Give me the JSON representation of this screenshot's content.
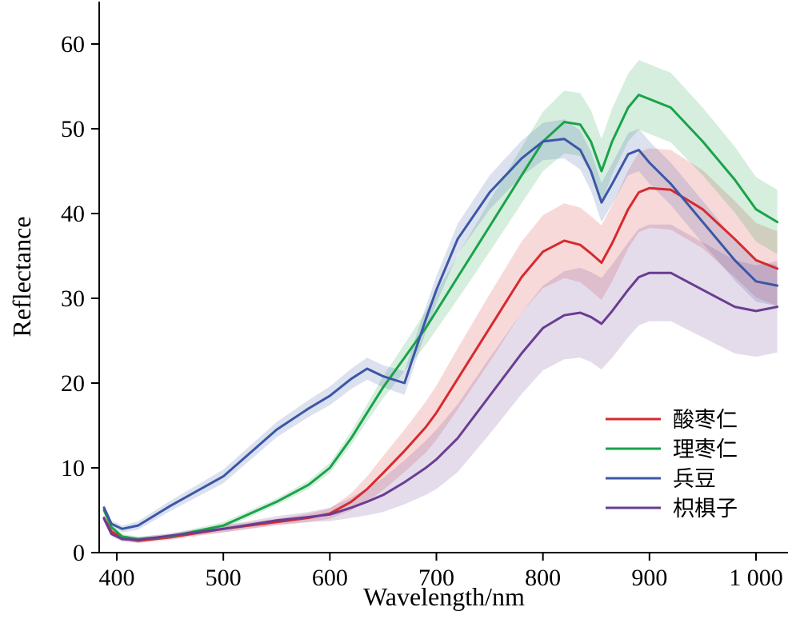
{
  "chart_data": {
    "type": "line",
    "xlabel": "Wavelength/nm",
    "ylabel": "Reflectance",
    "xlim": [
      385,
      1020
    ],
    "ylim": [
      0,
      65
    ],
    "x_ticks": [
      400,
      500,
      600,
      700,
      800,
      900,
      1000
    ],
    "x_tick_labels": [
      "400",
      "500",
      "600",
      "700",
      "800",
      "900",
      "1 000"
    ],
    "y_ticks": [
      0,
      10,
      20,
      30,
      40,
      50,
      60
    ],
    "y_tick_labels": [
      "0",
      "10",
      "20",
      "30",
      "40",
      "50",
      "60"
    ],
    "grid": false,
    "legend_position": "bottom-right",
    "x": [
      388,
      395,
      405,
      420,
      450,
      500,
      550,
      580,
      600,
      620,
      635,
      650,
      670,
      690,
      700,
      720,
      750,
      780,
      800,
      820,
      835,
      845,
      855,
      865,
      880,
      890,
      900,
      920,
      950,
      980,
      1000,
      1020
    ],
    "series": [
      {
        "name": "酸枣仁",
        "color": "#d62a2f",
        "values": [
          4.1,
          2.5,
          1.7,
          1.4,
          1.8,
          2.8,
          3.6,
          4.1,
          4.6,
          6.0,
          7.5,
          9.4,
          12.0,
          14.8,
          16.5,
          20.5,
          26.5,
          32.5,
          35.5,
          36.8,
          36.3,
          35.3,
          34.2,
          36.5,
          40.5,
          42.5,
          43.0,
          42.8,
          40.5,
          37.0,
          34.5,
          33.5
        ],
        "band": [
          0.3,
          0.3,
          0.3,
          0.3,
          0.3,
          0.4,
          0.4,
          0.5,
          0.6,
          1.0,
          1.5,
          2.0,
          2.5,
          3.0,
          3.2,
          3.6,
          4.0,
          4.2,
          4.3,
          4.4,
          4.4,
          4.4,
          4.4,
          4.5,
          4.6,
          4.7,
          4.7,
          4.7,
          4.6,
          4.5,
          4.4,
          4.4
        ]
      },
      {
        "name": "理枣仁",
        "color": "#1aa34a",
        "values": [
          5.0,
          3.0,
          1.9,
          1.6,
          1.9,
          3.2,
          6.0,
          8.0,
          10.0,
          13.5,
          16.5,
          19.5,
          23.0,
          26.5,
          28.5,
          32.5,
          38.5,
          44.5,
          48.5,
          50.8,
          50.5,
          48.5,
          45.0,
          48.5,
          52.5,
          54.0,
          53.5,
          52.5,
          48.5,
          44.0,
          40.5,
          39.0
        ],
        "band": [
          0.3,
          0.3,
          0.3,
          0.3,
          0.3,
          0.4,
          0.4,
          0.5,
          0.6,
          0.8,
          1.0,
          1.3,
          1.6,
          2.0,
          2.2,
          2.6,
          3.0,
          3.3,
          3.5,
          3.7,
          3.7,
          3.7,
          3.8,
          3.9,
          4.0,
          4.1,
          4.1,
          4.1,
          4.0,
          3.9,
          3.8,
          3.8
        ]
      },
      {
        "name": "兵豆",
        "color": "#3b57a6",
        "values": [
          5.3,
          3.4,
          2.8,
          3.2,
          5.5,
          9.0,
          14.5,
          17.0,
          18.5,
          20.5,
          21.7,
          20.8,
          20.0,
          27.5,
          31.0,
          37.0,
          42.5,
          46.5,
          48.5,
          48.8,
          47.5,
          45.0,
          41.3,
          43.5,
          47.0,
          47.5,
          46.0,
          43.5,
          39.0,
          34.5,
          32.0,
          31.5
        ],
        "band": [
          0.4,
          0.4,
          0.4,
          0.5,
          0.6,
          0.8,
          0.9,
          1.0,
          1.1,
          1.2,
          1.3,
          1.3,
          1.4,
          1.5,
          1.6,
          1.8,
          2.0,
          2.1,
          2.2,
          2.3,
          2.3,
          2.3,
          2.3,
          2.4,
          2.5,
          2.5,
          2.5,
          2.5,
          2.5,
          2.4,
          2.4,
          2.4
        ]
      },
      {
        "name": "枳椇子",
        "color": "#6a3d91",
        "values": [
          4.0,
          2.2,
          1.6,
          1.5,
          2.0,
          2.8,
          3.8,
          4.2,
          4.5,
          5.3,
          6.0,
          6.8,
          8.3,
          10.0,
          11.0,
          13.5,
          18.5,
          23.5,
          26.5,
          28.0,
          28.3,
          27.8,
          27.0,
          28.5,
          31.0,
          32.5,
          33.0,
          33.0,
          31.0,
          29.0,
          28.5,
          29.0
        ],
        "band": [
          0.3,
          0.3,
          0.3,
          0.3,
          0.3,
          0.4,
          0.5,
          0.6,
          0.8,
          1.2,
          1.6,
          2.0,
          2.6,
          3.2,
          3.5,
          4.0,
          4.5,
          4.8,
          5.0,
          5.2,
          5.3,
          5.3,
          5.4,
          5.5,
          5.6,
          5.7,
          5.7,
          5.7,
          5.6,
          5.5,
          5.4,
          5.4
        ]
      }
    ]
  }
}
